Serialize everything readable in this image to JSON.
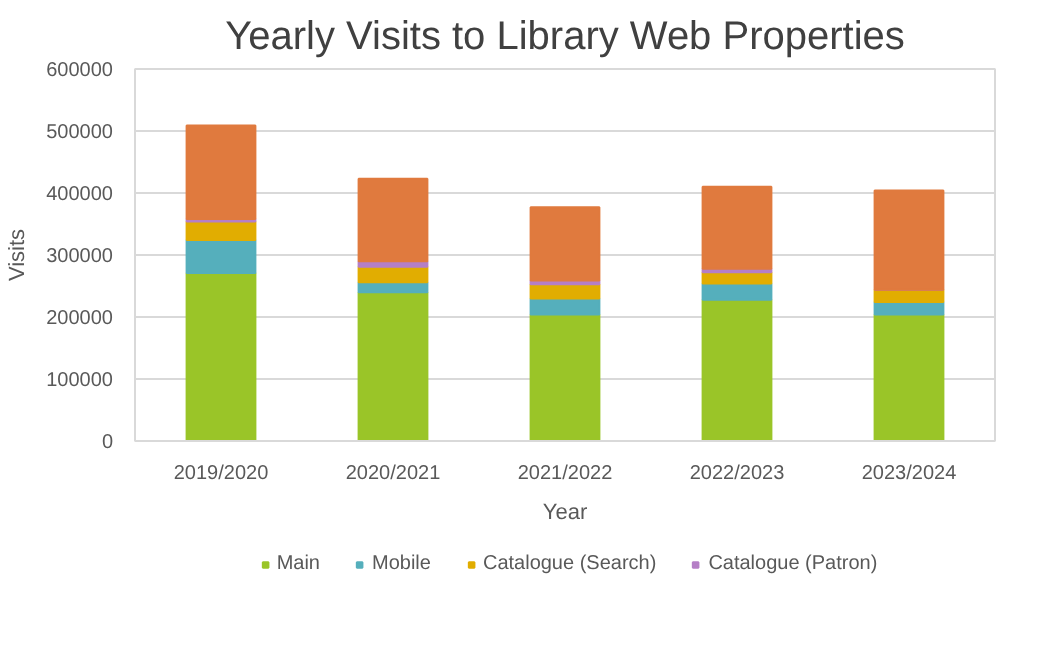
{
  "chart_data": {
    "type": "bar",
    "title": "Yearly Visits to Library Web Properties",
    "xlabel": "Year",
    "ylabel": "Visits",
    "categories": [
      "2019/2020",
      "2020/2021",
      "2021/2022",
      "2022/2023",
      "2023/2024"
    ],
    "stacked": true,
    "ylim": [
      0,
      600000
    ],
    "yticks": [
      0,
      100000,
      200000,
      300000,
      400000,
      500000,
      600000
    ],
    "grid": "y",
    "legend": "bottom",
    "series": [
      {
        "name": "Main",
        "color": "#9ac528",
        "values": [
          271000,
          240000,
          204000,
          228000,
          204000
        ]
      },
      {
        "name": "Mobile",
        "color": "#55afbc",
        "values": [
          53000,
          16000,
          26000,
          26000,
          20000
        ]
      },
      {
        "name": "Catalogue (Search)",
        "color": "#e1ad01",
        "values": [
          30000,
          25000,
          23000,
          18000,
          20000
        ]
      },
      {
        "name": "Catalogue (Patron)",
        "color": "#b57fc6",
        "values": [
          4000,
          9000,
          6000,
          6000,
          0
        ]
      },
      {
        "color": "#e07a3e",
        "values": [
          151000,
          133000,
          118000,
          132000,
          160000
        ]
      }
    ]
  }
}
